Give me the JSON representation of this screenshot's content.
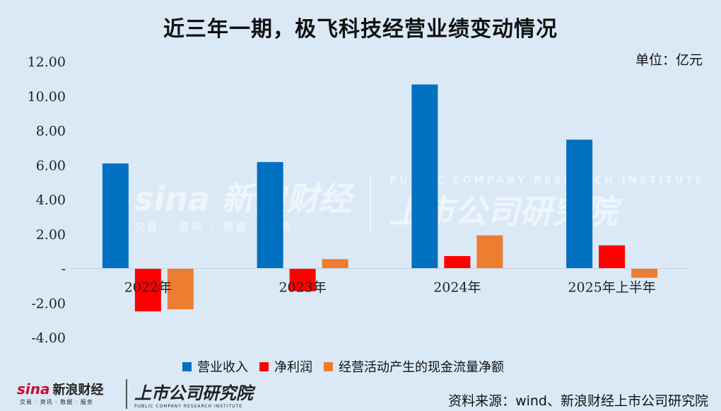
{
  "title": "近三年一期，极飞科技经营业绩变动情况",
  "unit_label": "单位：亿元",
  "source": "资料来源：wind、新浪财经上市公司研究院",
  "logos": {
    "sina_brand": "sina",
    "sina_cn": "新浪财经",
    "sina_sub": "交易 · 资讯 · 数据 · 服务",
    "institute": "上市公司研究院",
    "institute_sub": "PUBLIC COMPANY RESEARCH INSTITUTE"
  },
  "colors": {
    "revenue": "#0070c0",
    "net_profit": "#ff0000",
    "cash_flow": "#ed7d31",
    "background": "#dbe9f7"
  },
  "chart_data": {
    "type": "bar",
    "title": "近三年一期，极飞科技经营业绩变动情况",
    "categories": [
      "2022年",
      "2023年",
      "2024年",
      "2025年上半年"
    ],
    "series": [
      {
        "name": "营业收入",
        "values": [
          6.09,
          6.17,
          10.67,
          7.47
        ]
      },
      {
        "name": "净利润",
        "values": [
          -2.49,
          -1.32,
          0.72,
          1.34
        ]
      },
      {
        "name": "经营活动产生的现金流量净额",
        "values": [
          -2.37,
          0.54,
          1.92,
          -0.54
        ]
      }
    ],
    "ylim": [
      -4,
      12
    ],
    "yticks": [
      12,
      10,
      8,
      6,
      4,
      2,
      0,
      -2,
      -4
    ],
    "ytick_labels": [
      "12.00",
      "10.00",
      "8.00",
      "6.00",
      "4.00",
      "2.00",
      "-",
      "-2.00",
      "-4.00"
    ],
    "xlabel": "",
    "ylabel": "",
    "legend_position": "bottom",
    "grid": false
  }
}
